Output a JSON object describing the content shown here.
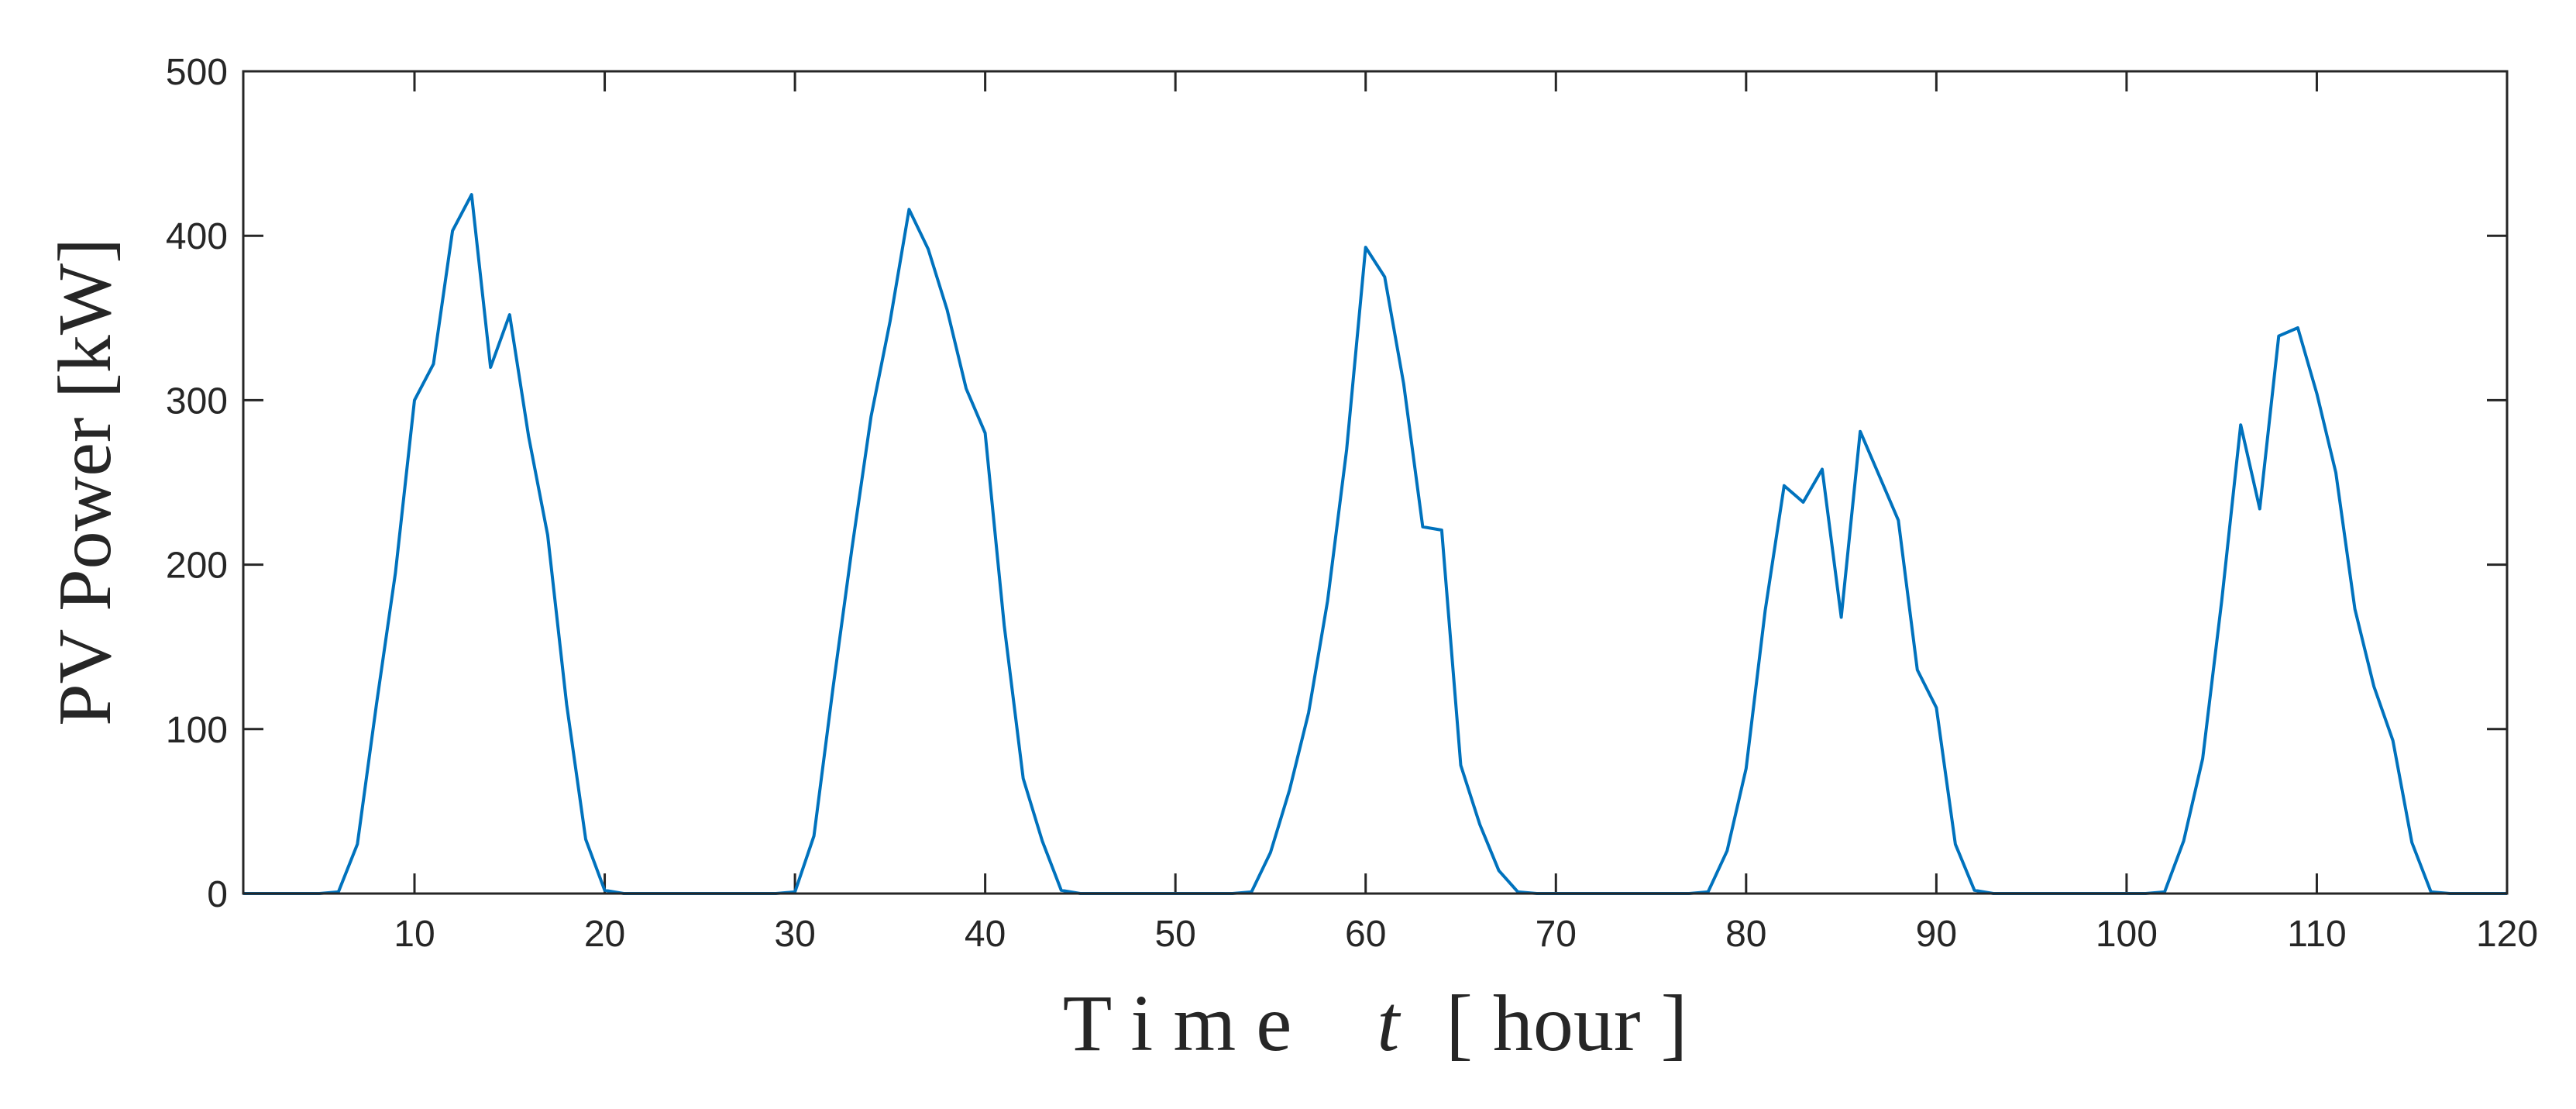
{
  "chart_data": {
    "type": "line",
    "xlabel": {
      "prefix": "T i m e",
      "variable": "t",
      "suffix": "[ hour ]"
    },
    "ylabel": "PV Power  [kW]",
    "xlim": [
      1,
      120
    ],
    "ylim": [
      0,
      500
    ],
    "xticks": [
      10,
      20,
      30,
      40,
      50,
      60,
      70,
      80,
      90,
      100,
      110,
      120
    ],
    "yticks": [
      0,
      100,
      200,
      300,
      400,
      500
    ],
    "grid": false,
    "line_color": "#0072BD",
    "axis_color": "#262626",
    "x": [
      1,
      2,
      3,
      4,
      5,
      6,
      7,
      8,
      9,
      10,
      11,
      12,
      13,
      14,
      15,
      16,
      17,
      18,
      19,
      20,
      21,
      22,
      23,
      24,
      25,
      26,
      27,
      28,
      29,
      30,
      31,
      32,
      33,
      34,
      35,
      36,
      37,
      38,
      39,
      40,
      41,
      42,
      43,
      44,
      45,
      46,
      47,
      48,
      49,
      50,
      51,
      52,
      53,
      54,
      55,
      56,
      57,
      58,
      59,
      60,
      61,
      62,
      63,
      64,
      65,
      66,
      67,
      68,
      69,
      70,
      71,
      72,
      73,
      74,
      75,
      76,
      77,
      78,
      79,
      80,
      81,
      82,
      83,
      84,
      85,
      86,
      87,
      88,
      89,
      90,
      91,
      92,
      93,
      94,
      95,
      96,
      97,
      98,
      99,
      100,
      101,
      102,
      103,
      104,
      105,
      106,
      107,
      108,
      109,
      110,
      111,
      112,
      113,
      114,
      115,
      116,
      117,
      118,
      119,
      120
    ],
    "y": [
      0,
      0,
      0,
      0,
      0,
      1,
      30,
      115,
      195,
      300,
      322,
      403,
      425,
      320,
      352,
      278,
      218,
      115,
      33,
      2,
      0,
      0,
      0,
      0,
      0,
      0,
      0,
      0,
      0,
      1,
      35,
      125,
      210,
      290,
      348,
      416,
      392,
      355,
      307,
      280,
      163,
      70,
      32,
      2,
      0,
      0,
      0,
      0,
      0,
      0,
      0,
      0,
      0,
      1,
      25,
      63,
      110,
      178,
      270,
      393,
      375,
      310,
      223,
      221,
      78,
      42,
      14,
      1,
      0,
      0,
      0,
      0,
      0,
      0,
      0,
      0,
      0,
      1,
      26,
      76,
      172,
      248,
      238,
      258,
      168,
      281,
      254,
      227,
      136,
      113,
      30,
      2,
      0,
      0,
      0,
      0,
      0,
      0,
      0,
      0,
      0,
      1,
      32,
      82,
      178,
      285,
      234,
      339,
      344,
      304,
      256,
      173,
      126,
      93,
      31,
      1,
      0,
      0,
      0,
      0
    ]
  }
}
